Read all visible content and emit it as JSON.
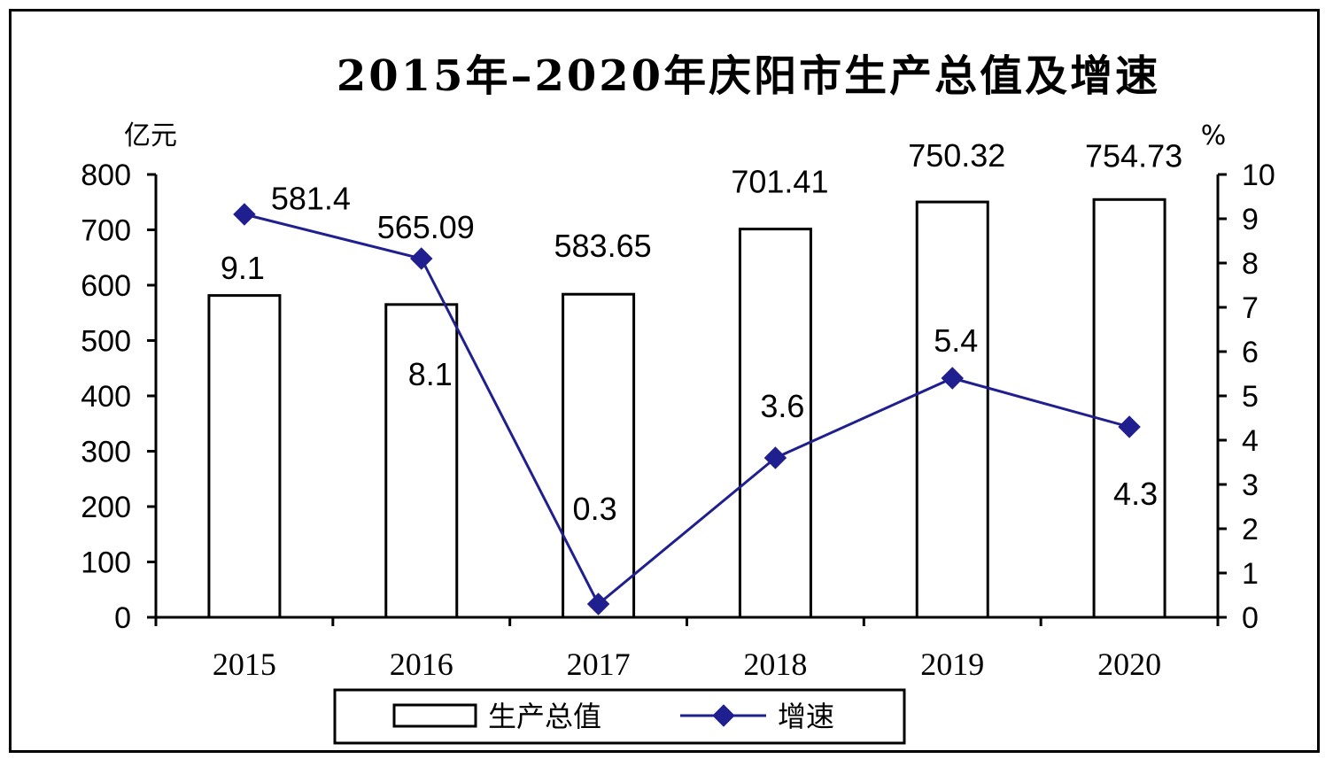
{
  "chart_data": {
    "type": "bar",
    "title": "2015年–2020年庆阳市生产总值及增速",
    "categories": [
      "2015",
      "2016",
      "2017",
      "2018",
      "2019",
      "2020"
    ],
    "series": [
      {
        "name": "生产总值",
        "type": "bar",
        "axis": "left",
        "values": [
          581.4,
          565.09,
          583.65,
          701.41,
          750.32,
          754.73
        ],
        "labels": [
          "581.4",
          "565.09",
          "583.65",
          "701.41",
          "750.32",
          "754.73"
        ]
      },
      {
        "name": "增速",
        "type": "line",
        "axis": "right",
        "values": [
          9.1,
          8.1,
          0.3,
          3.6,
          5.4,
          4.3
        ],
        "labels": [
          "9.1",
          "8.1",
          "0.3",
          "3.6",
          "5.4",
          "4.3"
        ]
      }
    ],
    "y_left": {
      "unit": "亿元",
      "range": [
        0,
        800
      ],
      "ticks": [
        "0",
        "100",
        "200",
        "300",
        "400",
        "500",
        "600",
        "700",
        "800"
      ]
    },
    "y_right": {
      "unit": "%",
      "range": [
        0,
        10
      ],
      "ticks": [
        "0",
        "1",
        "2",
        "3",
        "4",
        "5",
        "6",
        "7",
        "8",
        "9",
        "10"
      ]
    },
    "grid": false,
    "legend_position": "bottom",
    "colors": {
      "bar_fill": "#ffffff",
      "bar_stroke": "#000000",
      "line": "#1f1f8f",
      "marker": "#1f1f8f"
    }
  }
}
